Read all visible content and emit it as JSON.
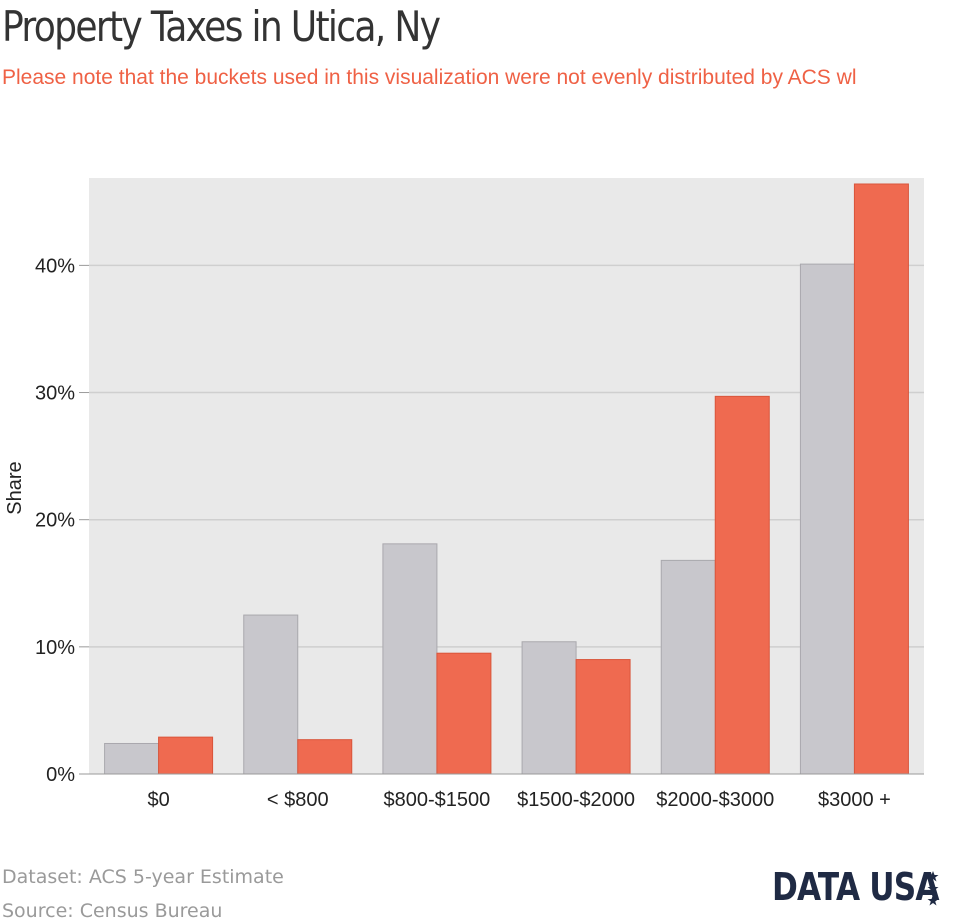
{
  "header": {
    "title": "Property Taxes in Utica, Ny",
    "subtitle": "Please note that the buckets used in this visualization were not evenly distributed by ACS wl"
  },
  "chart_data": {
    "type": "bar",
    "title": "Property Taxes in Utica, Ny",
    "xlabel": "",
    "ylabel": "Share",
    "categories": [
      "$0",
      "< $800",
      "$800-$1500",
      "$1500-$2000",
      "$2000-$3000",
      "$3000 +"
    ],
    "series": [
      {
        "values": [
          2.4,
          12.5,
          18.1,
          10.4,
          16.8,
          40.1
        ],
        "color": "#c8c7cc"
      },
      {
        "values": [
          2.9,
          2.7,
          9.5,
          9.0,
          29.7,
          46.4
        ],
        "color": "#ef6a50"
      }
    ],
    "yticks": [
      0,
      10,
      20,
      30,
      40
    ],
    "ytick_labels": [
      "0%",
      "10%",
      "20%",
      "30%",
      "40%"
    ],
    "ylim": [
      0,
      46.4
    ],
    "grid": true,
    "legend": "none",
    "background": "#e9e9e9"
  },
  "footer": {
    "dataset": "Dataset: ACS 5-year Estimate",
    "source": "Source: Census Bureau",
    "logo": "DATA USA"
  }
}
